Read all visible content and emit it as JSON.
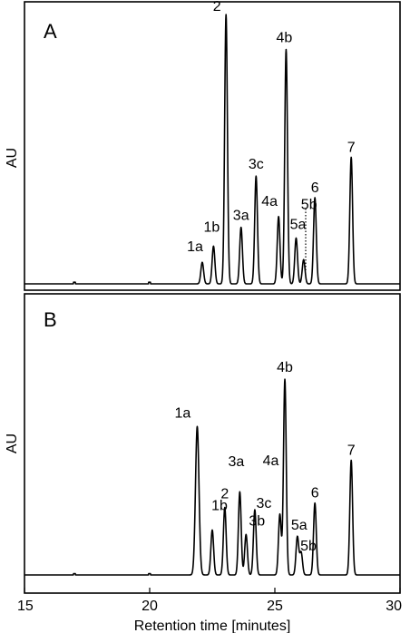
{
  "chart_data": {
    "type": "line",
    "xlabel": "Retention time [minutes]",
    "xlim": [
      15,
      30
    ],
    "xticks": [
      "15",
      "20",
      "25",
      "30"
    ],
    "panels": [
      {
        "panel_label": "A",
        "ylabel": "AU",
        "peaks": [
          {
            "label": "1a",
            "x": 22.1,
            "height": 0.08
          },
          {
            "label": "1b",
            "x": 22.55,
            "height": 0.14
          },
          {
            "label": "2",
            "x": 23.05,
            "height": 1.0
          },
          {
            "label": "3a",
            "x": 23.65,
            "height": 0.21
          },
          {
            "label": "3c",
            "x": 24.25,
            "height": 0.4
          },
          {
            "label": "4a",
            "x": 25.15,
            "height": 0.25
          },
          {
            "label": "4b",
            "x": 25.45,
            "height": 0.87
          },
          {
            "label": "5a",
            "x": 25.85,
            "height": 0.17
          },
          {
            "label": "5b",
            "x": 26.15,
            "height": 0.09
          },
          {
            "label": "6",
            "x": 26.6,
            "height": 0.32
          },
          {
            "label": "7",
            "x": 28.05,
            "height": 0.47
          }
        ]
      },
      {
        "panel_label": "B",
        "ylabel": "AU",
        "peaks": [
          {
            "label": "1a",
            "x": 21.9,
            "height": 0.66
          },
          {
            "label": "1b",
            "x": 22.5,
            "height": 0.2
          },
          {
            "label": "2",
            "x": 23.0,
            "height": 0.3
          },
          {
            "label": "3a",
            "x": 23.6,
            "height": 0.37
          },
          {
            "label": "3b",
            "x": 23.85,
            "height": 0.18
          },
          {
            "label": "3c",
            "x": 24.2,
            "height": 0.29
          },
          {
            "label": "4a",
            "x": 25.2,
            "height": 0.27
          },
          {
            "label": "4b",
            "x": 25.4,
            "height": 0.87
          },
          {
            "label": "5a",
            "x": 25.9,
            "height": 0.17
          },
          {
            "label": "5b",
            "x": 26.05,
            "height": 0.1
          },
          {
            "label": "6",
            "x": 26.6,
            "height": 0.32
          },
          {
            "label": "7",
            "x": 28.05,
            "height": 0.51
          }
        ]
      }
    ]
  }
}
